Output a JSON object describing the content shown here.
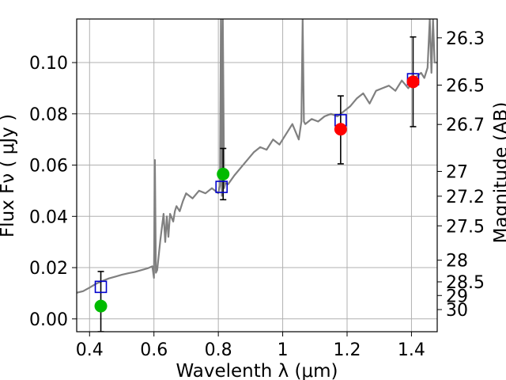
{
  "chart_data": {
    "type": "scatter",
    "xlabel": "Wavelenth  λ (μm)",
    "ylabel": "Flux  Fν  ( μJy )",
    "y2label": "Magnitude (AB)",
    "xlim": [
      0.36,
      1.48
    ],
    "ylim": [
      -0.005,
      0.117
    ],
    "grid": true,
    "x_ticks": [
      {
        "value": 0.4,
        "label": "0.4"
      },
      {
        "value": 0.6,
        "label": "0.6"
      },
      {
        "value": 0.8,
        "label": "0.8"
      },
      {
        "value": 1.0,
        "label": "1"
      },
      {
        "value": 1.2,
        "label": "1.2"
      },
      {
        "value": 1.4,
        "label": "1.4"
      }
    ],
    "y_ticks": [
      {
        "value": 0.0,
        "label": "0.00"
      },
      {
        "value": 0.02,
        "label": "0.02"
      },
      {
        "value": 0.04,
        "label": "0.04"
      },
      {
        "value": 0.06,
        "label": "0.06"
      },
      {
        "value": 0.08,
        "label": "0.08"
      },
      {
        "value": 0.1,
        "label": "0.10"
      }
    ],
    "y2_ticks": [
      {
        "mag": 26.3,
        "label": "26.3"
      },
      {
        "mag": 26.5,
        "label": "26.5"
      },
      {
        "mag": 26.7,
        "label": "26.7"
      },
      {
        "mag": 27.0,
        "label": "27"
      },
      {
        "mag": 27.2,
        "label": "27.2"
      },
      {
        "mag": 27.5,
        "label": "27.5"
      },
      {
        "mag": 28.0,
        "label": "28"
      },
      {
        "mag": 28.5,
        "label": "28.5"
      },
      {
        "mag": 29.0,
        "label": "29"
      },
      {
        "mag": 30.0,
        "label": "30"
      }
    ],
    "spectrum": {
      "color": "#808080",
      "x": [
        0.36,
        0.38,
        0.4,
        0.42,
        0.44,
        0.46,
        0.48,
        0.5,
        0.52,
        0.54,
        0.56,
        0.58,
        0.595,
        0.6,
        0.603,
        0.606,
        0.61,
        0.62,
        0.625,
        0.63,
        0.635,
        0.64,
        0.645,
        0.65,
        0.66,
        0.665,
        0.67,
        0.68,
        0.69,
        0.7,
        0.72,
        0.74,
        0.76,
        0.78,
        0.8,
        0.805,
        0.808,
        0.811,
        0.814,
        0.818,
        0.822,
        0.83,
        0.85,
        0.87,
        0.89,
        0.91,
        0.93,
        0.95,
        0.97,
        0.99,
        1.01,
        1.03,
        1.05,
        1.058,
        1.062,
        1.066,
        1.07,
        1.09,
        1.11,
        1.13,
        1.15,
        1.17,
        1.19,
        1.21,
        1.23,
        1.25,
        1.27,
        1.29,
        1.31,
        1.33,
        1.35,
        1.37,
        1.39,
        1.41,
        1.43,
        1.44,
        1.45,
        1.457,
        1.462,
        1.467,
        1.472,
        1.48
      ],
      "y": [
        0.0102,
        0.0108,
        0.0122,
        0.0137,
        0.0148,
        0.0158,
        0.0165,
        0.0172,
        0.0178,
        0.0183,
        0.019,
        0.0197,
        0.0205,
        0.016,
        0.062,
        0.018,
        0.019,
        0.031,
        0.036,
        0.041,
        0.03,
        0.04,
        0.032,
        0.041,
        0.038,
        0.042,
        0.044,
        0.042,
        0.046,
        0.049,
        0.047,
        0.05,
        0.049,
        0.051,
        0.049,
        0.052,
        0.117,
        0.048,
        0.117,
        0.051,
        0.053,
        0.0525,
        0.056,
        0.059,
        0.062,
        0.065,
        0.067,
        0.066,
        0.07,
        0.068,
        0.072,
        0.076,
        0.07,
        0.077,
        0.117,
        0.077,
        0.076,
        0.078,
        0.077,
        0.079,
        0.08,
        0.079,
        0.081,
        0.083,
        0.086,
        0.088,
        0.084,
        0.089,
        0.09,
        0.091,
        0.089,
        0.093,
        0.09,
        0.094,
        0.096,
        0.094,
        0.098,
        0.117,
        0.096,
        0.117,
        0.1,
        0.1
      ]
    },
    "model_points": {
      "color": "#0000cc",
      "marker": "open-square",
      "x": [
        0.435,
        0.81,
        1.18,
        1.405
      ],
      "y": [
        0.0125,
        0.0515,
        0.0775,
        0.0935
      ]
    },
    "observed_points": {
      "marker": "circle",
      "x": [
        0.435,
        0.815,
        1.18,
        1.405
      ],
      "y": [
        0.005,
        0.0565,
        0.074,
        0.0925
      ],
      "yerr_low": [
        0.01,
        0.01,
        0.0135,
        0.0175
      ],
      "yerr_high": [
        0.0135,
        0.01,
        0.013,
        0.0175
      ],
      "colors": [
        "#00bb00",
        "#00bb00",
        "#ff0000",
        "#ff0000"
      ]
    }
  }
}
